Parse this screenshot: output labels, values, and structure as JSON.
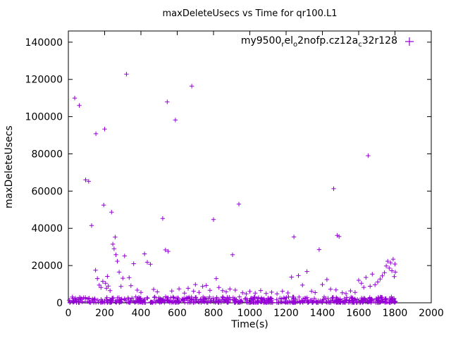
{
  "chart_data": {
    "type": "scatter",
    "title": "maxDeleteUsecs vs Time for qr100.L1",
    "xlabel": "Time(s)",
    "ylabel": "maxDeleteUsecs",
    "xlim": [
      0,
      2000
    ],
    "ylim": [
      0,
      146000
    ],
    "xticks": [
      0,
      200,
      400,
      600,
      800,
      1000,
      1200,
      1400,
      1600,
      1800,
      2000
    ],
    "yticks": [
      0,
      20000,
      40000,
      60000,
      80000,
      100000,
      120000,
      140000
    ],
    "grid": false,
    "legend_position": "top-right-inside",
    "marker": "plus",
    "marker_color": "#9400D3",
    "axis_color": "#000000",
    "legend_parts": [
      {
        "text": "my9500"
      },
      {
        "text": "r",
        "sub": true
      },
      {
        "text": "el"
      },
      {
        "text": "o",
        "sub": true
      },
      {
        "text": "2nofp.cz12a"
      },
      {
        "text": "c",
        "sub": true
      },
      {
        "text": "32r128"
      }
    ],
    "outliers": [
      [
        35,
        110000
      ],
      [
        60,
        106000
      ],
      [
        95,
        66000
      ],
      [
        112,
        65200
      ],
      [
        128,
        41500
      ],
      [
        152,
        90800
      ],
      [
        150,
        17500
      ],
      [
        160,
        13000
      ],
      [
        170,
        9500
      ],
      [
        180,
        8200
      ],
      [
        190,
        11500
      ],
      [
        195,
        52500
      ],
      [
        200,
        93300
      ],
      [
        205,
        10500
      ],
      [
        210,
        7800
      ],
      [
        215,
        14200
      ],
      [
        220,
        9000
      ],
      [
        230,
        6500
      ],
      [
        238,
        48700
      ],
      [
        245,
        31500
      ],
      [
        252,
        29000
      ],
      [
        258,
        35300
      ],
      [
        262,
        25800
      ],
      [
        270,
        22300
      ],
      [
        280,
        16500
      ],
      [
        290,
        8800
      ],
      [
        300,
        13200
      ],
      [
        310,
        25200
      ],
      [
        320,
        122800
      ],
      [
        335,
        13500
      ],
      [
        345,
        9200
      ],
      [
        360,
        21000
      ],
      [
        380,
        6800
      ],
      [
        400,
        5600
      ],
      [
        420,
        26300
      ],
      [
        435,
        21800
      ],
      [
        452,
        20700
      ],
      [
        470,
        7200
      ],
      [
        490,
        5900
      ],
      [
        520,
        45300
      ],
      [
        535,
        28400
      ],
      [
        545,
        107900
      ],
      [
        550,
        27600
      ],
      [
        570,
        6300
      ],
      [
        590,
        98200
      ],
      [
        610,
        7500
      ],
      [
        640,
        5200
      ],
      [
        660,
        7800
      ],
      [
        680,
        116400
      ],
      [
        690,
        6200
      ],
      [
        700,
        9800
      ],
      [
        720,
        5600
      ],
      [
        740,
        8800
      ],
      [
        760,
        9300
      ],
      [
        780,
        6700
      ],
      [
        800,
        44700
      ],
      [
        815,
        13000
      ],
      [
        830,
        8200
      ],
      [
        850,
        6500
      ],
      [
        870,
        5900
      ],
      [
        890,
        7400
      ],
      [
        905,
        25800
      ],
      [
        920,
        6800
      ],
      [
        940,
        53000
      ],
      [
        960,
        5400
      ],
      [
        980,
        4800
      ],
      [
        1000,
        6100
      ],
      [
        1030,
        5200
      ],
      [
        1060,
        6600
      ],
      [
        1090,
        5000
      ],
      [
        1120,
        5700
      ],
      [
        1150,
        4800
      ],
      [
        1180,
        6200
      ],
      [
        1210,
        5300
      ],
      [
        1230,
        13800
      ],
      [
        1243,
        35400
      ],
      [
        1268,
        14600
      ],
      [
        1290,
        9500
      ],
      [
        1315,
        16800
      ],
      [
        1340,
        6200
      ],
      [
        1360,
        5500
      ],
      [
        1382,
        28600
      ],
      [
        1400,
        9800
      ],
      [
        1425,
        12500
      ],
      [
        1445,
        7300
      ],
      [
        1462,
        61300
      ],
      [
        1475,
        6900
      ],
      [
        1482,
        36200
      ],
      [
        1492,
        35600
      ],
      [
        1510,
        5400
      ],
      [
        1530,
        4900
      ],
      [
        1555,
        6400
      ],
      [
        1580,
        5600
      ],
      [
        1600,
        12100
      ],
      [
        1615,
        10500
      ],
      [
        1628,
        8300
      ],
      [
        1640,
        13600
      ],
      [
        1652,
        79000
      ],
      [
        1663,
        8900
      ],
      [
        1675,
        15400
      ],
      [
        1690,
        9700
      ],
      [
        1705,
        11200
      ],
      [
        1718,
        12800
      ],
      [
        1730,
        14500
      ],
      [
        1742,
        16200
      ],
      [
        1752,
        19800
      ],
      [
        1760,
        22300
      ],
      [
        1768,
        18600
      ],
      [
        1776,
        21500
      ],
      [
        1783,
        17200
      ],
      [
        1790,
        23400
      ],
      [
        1796,
        14100
      ],
      [
        1800,
        20800
      ],
      [
        1802,
        16500
      ]
    ],
    "dense_band": {
      "description": "dense base band of samples hugging y≈0-3200 across full x range",
      "seed": 42,
      "count": 650,
      "x_min": 5,
      "x_max": 1805,
      "y_min": 100,
      "y_max": 3200
    }
  }
}
